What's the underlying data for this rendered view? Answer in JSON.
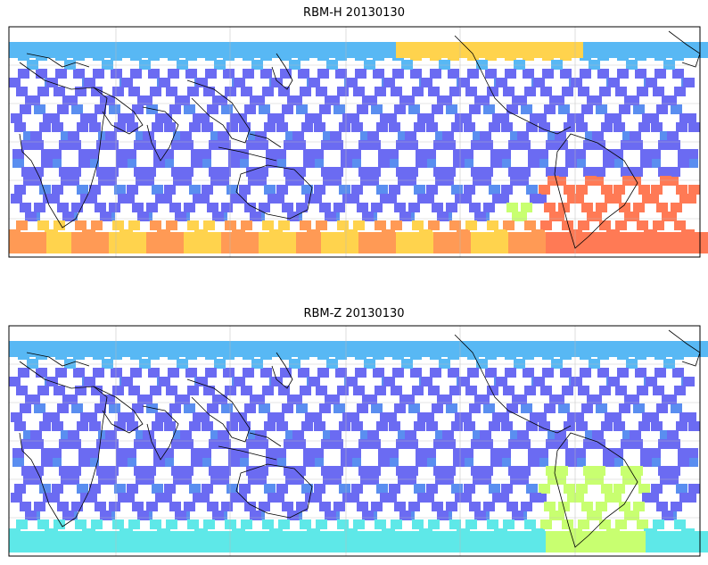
{
  "panels": [
    {
      "title": "RBM-H 20130130",
      "colors": [
        "#6b6bf2",
        "#5a8ef0",
        "#58b8f4",
        "#5ee8e8",
        "#c8ff70",
        "#ffd34d",
        "#ff9a55",
        "#ff7a55"
      ],
      "hot": "south-and-southatlantic"
    },
    {
      "title": "RBM-Z 20130130",
      "colors": [
        "#6b6bf2",
        "#5a8ef0",
        "#58b8f4",
        "#5ee8e8",
        "#c8ff70",
        "#ffd34d"
      ],
      "hot": "southatlantic-mild"
    }
  ],
  "colormap": "jet",
  "grid": true
}
